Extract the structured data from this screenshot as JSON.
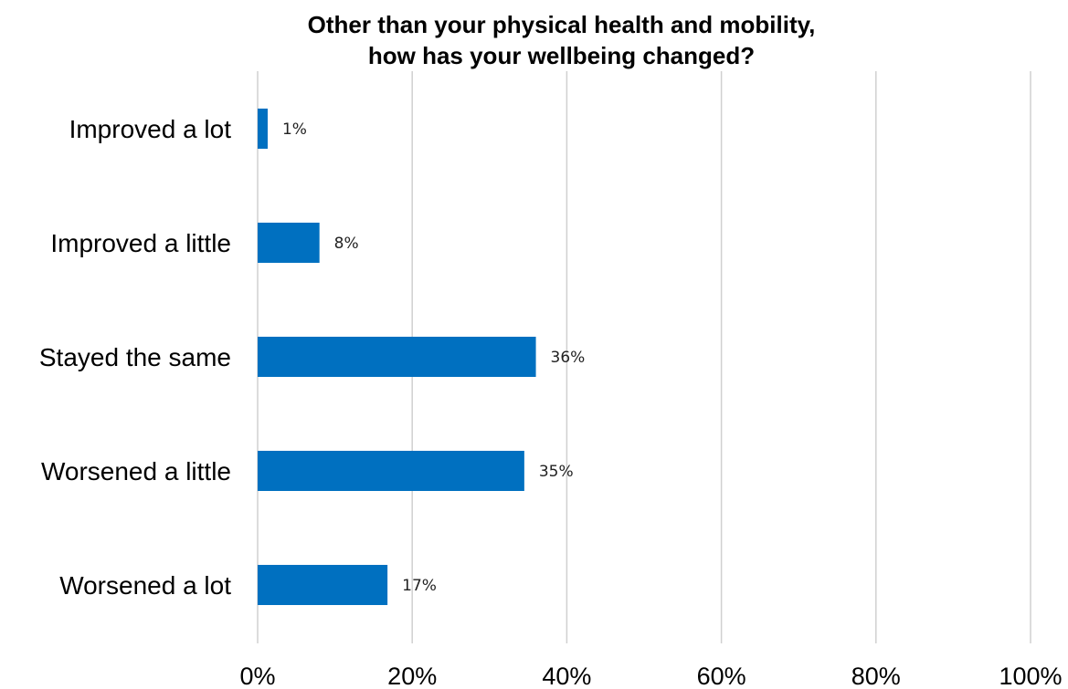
{
  "chart_data": {
    "type": "bar",
    "orientation": "horizontal",
    "title_lines": [
      "Other than your physical health and mobility,",
      "how has your wellbeing changed?"
    ],
    "categories": [
      "Improved a lot",
      "Improved a little",
      "Stayed the same",
      "Worsened a little",
      "Worsened a lot"
    ],
    "values": [
      1.3,
      8,
      36,
      34.5,
      16.8
    ],
    "data_labels": [
      "1%",
      "8%",
      "36%",
      "35%",
      "17%"
    ],
    "xlim": [
      0,
      100
    ],
    "xticks": [
      0,
      20,
      40,
      60,
      80,
      100
    ],
    "xtick_labels": [
      "0%",
      "20%",
      "40%",
      "60%",
      "80%",
      "100%"
    ],
    "xlabel": "",
    "ylabel": "",
    "grid": "vertical",
    "legend": "none",
    "colors": {
      "bar": "#0070c0",
      "grid": "#d0d0d0"
    }
  }
}
